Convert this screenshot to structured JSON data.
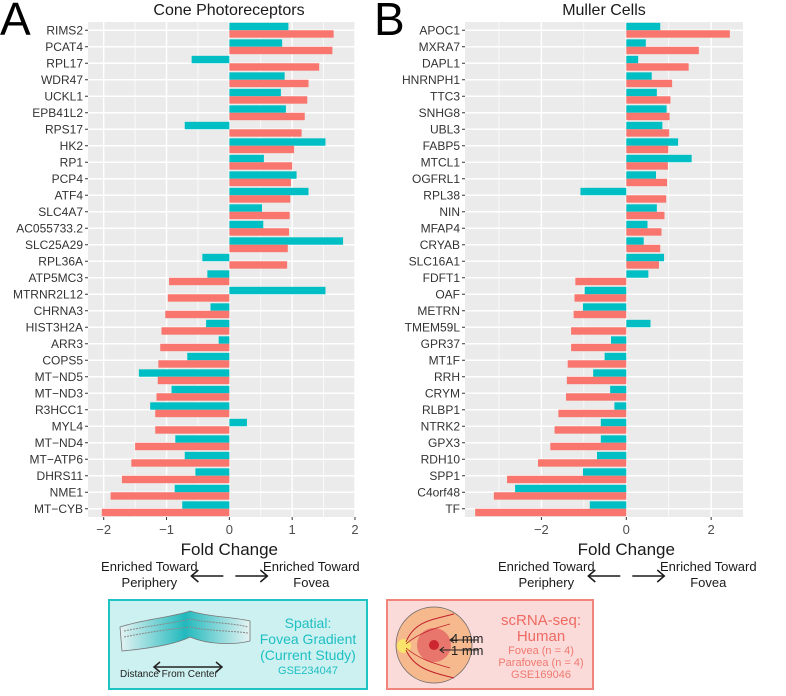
{
  "figure": {
    "panel_a_letter": "A",
    "panel_b_letter": "B",
    "colors": {
      "spatial": "#00BFC4",
      "scrnaseq": "#F8766D",
      "panel_bg": "#EBEBEB",
      "grid": "#FFFFFF"
    }
  },
  "chart_data": [
    {
      "type": "bar",
      "orientation": "horizontal",
      "title": "Cone Photoreceptors",
      "xlabel": "Fold Change",
      "ylabel": "",
      "xlim": [
        -2.25,
        2.0
      ],
      "xticks": [
        -2,
        -1,
        0,
        1,
        2
      ],
      "xtick_labels": [
        "−2",
        "−1",
        "0",
        "1",
        "2"
      ],
      "grid": true,
      "direction_labels": {
        "left": [
          "Enriched Toward",
          "Periphery"
        ],
        "right": [
          "Enriched Toward",
          "Fovea"
        ]
      },
      "categories": [
        "RIMS2",
        "PCAT4",
        "RPL17",
        "WDR47",
        "UCKL1",
        "EPB41L2",
        "RPS17",
        "HK2",
        "RP1",
        "PCP4",
        "ATF4",
        "SLC4A7",
        "AC055733.2",
        "SLC25A29",
        "RPL36A",
        "ATP5MC3",
        "MTRNR2L12",
        "CHRNA3",
        "HIST3H2A",
        "ARR3",
        "COPS5",
        "MT−ND5",
        "MT−ND3",
        "R3HCC1",
        "MYL4",
        "MT−ND4",
        "MT−ATP6",
        "DHRS11",
        "NME1",
        "MT−CYB"
      ],
      "series": [
        {
          "name": "Spatial: Fovea Gradient (Current Study)",
          "color": "#00BFC4",
          "values": [
            0.94,
            0.84,
            -0.6,
            0.88,
            0.82,
            0.9,
            -0.71,
            1.53,
            0.55,
            1.07,
            1.26,
            0.52,
            0.54,
            1.81,
            -0.43,
            -0.35,
            1.53,
            -0.3,
            -0.37,
            -0.17,
            -0.67,
            -1.44,
            -0.92,
            -1.26,
            0.28,
            -0.86,
            -0.71,
            -0.54,
            -0.87,
            -0.75
          ]
        },
        {
          "name": "scRNA-seq: Human",
          "color": "#F8766D",
          "values": [
            1.66,
            1.64,
            1.43,
            1.26,
            1.24,
            1.2,
            1.15,
            1.03,
            1.0,
            0.98,
            0.97,
            0.96,
            0.95,
            0.93,
            0.92,
            -0.96,
            -0.98,
            -1.02,
            -1.08,
            -1.1,
            -1.13,
            -1.14,
            -1.16,
            -1.18,
            -1.18,
            -1.5,
            -1.56,
            -1.71,
            -1.89,
            -2.03
          ]
        }
      ]
    },
    {
      "type": "bar",
      "orientation": "horizontal",
      "title": "Muller Cells",
      "xlabel": "Fold Change",
      "ylabel": "",
      "xlim": [
        -3.8,
        2.75
      ],
      "xticks": [
        -2,
        0,
        2
      ],
      "xtick_labels": [
        "−2",
        "0",
        "2"
      ],
      "grid": true,
      "direction_labels": {
        "left": [
          "Enriched Toward",
          "Periphery"
        ],
        "right": [
          "Enriched Toward",
          "Fovea"
        ]
      },
      "categories": [
        "APOC1",
        "MXRA7",
        "DAPL1",
        "HNRNPH1",
        "TTC3",
        "SNHG8",
        "UBL3",
        "FABP5",
        "MTCL1",
        "OGFRL1",
        "RPL38",
        "NIN",
        "MFAP4",
        "CRYAB",
        "SLC16A1",
        "FDFT1",
        "OAF",
        "METRN",
        "TMEM59L",
        "GPR37",
        "MT1F",
        "RRH",
        "CRYM",
        "RLBP1",
        "NTRK2",
        "GPX3",
        "RDH10",
        "SPP1",
        "C4orf48",
        "TF"
      ],
      "series": [
        {
          "name": "Spatial: Fovea Gradient (Current Study)",
          "color": "#00BFC4",
          "values": [
            0.8,
            0.46,
            0.28,
            0.6,
            0.72,
            0.95,
            0.85,
            1.22,
            1.54,
            0.7,
            -1.08,
            0.72,
            0.5,
            0.41,
            0.89,
            0.52,
            -0.98,
            -1.02,
            0.57,
            -0.36,
            -0.51,
            -0.78,
            -0.38,
            -0.28,
            -0.6,
            -0.6,
            -0.69,
            -1.02,
            -2.62,
            -0.86
          ]
        },
        {
          "name": "scRNA-seq: Human",
          "color": "#F8766D",
          "values": [
            2.44,
            1.71,
            1.47,
            1.08,
            1.04,
            1.02,
            1.01,
            0.99,
            0.98,
            0.96,
            0.94,
            0.9,
            0.83,
            0.8,
            0.77,
            -1.2,
            -1.22,
            -1.24,
            -1.3,
            -1.3,
            -1.38,
            -1.4,
            -1.42,
            -1.6,
            -1.69,
            -1.79,
            -2.08,
            -2.81,
            -3.12,
            -3.56
          ]
        }
      ]
    }
  ],
  "legend": {
    "spatial": {
      "title_lines": [
        "Spatial:",
        "Fovea Gradient",
        "(Current Study)"
      ],
      "accession": "GSE234047",
      "caption": "Distance From Center"
    },
    "scrnaseq": {
      "title_lines": [
        "scRNA-seq:",
        "Human"
      ],
      "details": [
        "Fovea (n = 4)",
        "Parafovea (n = 4)",
        "GSE169046"
      ],
      "ring_labels": [
        "4 mm",
        "1 mm"
      ]
    }
  }
}
